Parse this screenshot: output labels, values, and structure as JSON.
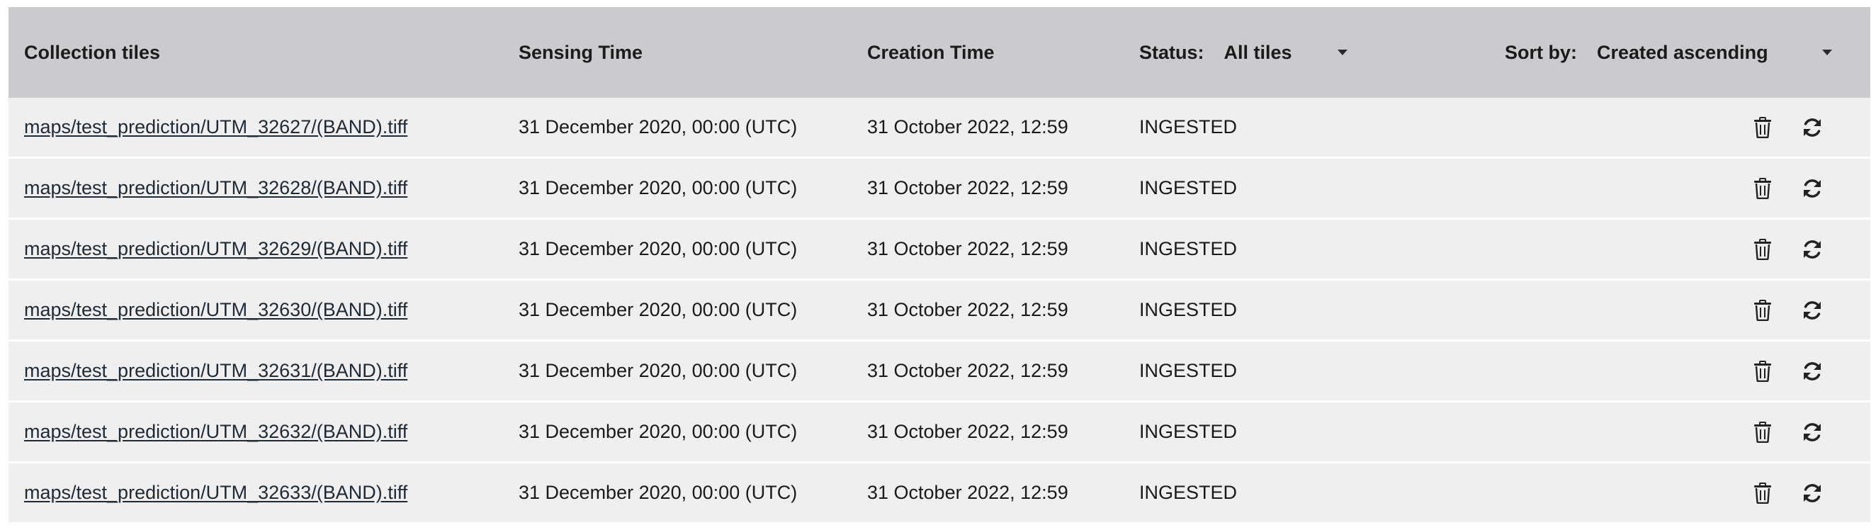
{
  "header": {
    "col_name": "Collection tiles",
    "col_sensing": "Sensing Time",
    "col_creation": "Creation Time",
    "status_label": "Status:",
    "status_value": "All tiles",
    "sort_label": "Sort by:",
    "sort_value": "Created ascending"
  },
  "icons": {
    "delete": "trash-icon",
    "reingest": "refresh-icon"
  },
  "rows": [
    {
      "name": "maps/test_prediction/UTM_32627/(BAND).tiff",
      "sensing": "31 December 2020, 00:00 (UTC)",
      "creation": "31 October  2022, 12:59",
      "status": "INGESTED"
    },
    {
      "name": "maps/test_prediction/UTM_32628/(BAND).tiff",
      "sensing": "31 December 2020, 00:00 (UTC)",
      "creation": "31 October 2022, 12:59",
      "status": "INGESTED"
    },
    {
      "name": "maps/test_prediction/UTM_32629/(BAND).tiff",
      "sensing": "31 December 2020, 00:00 (UTC)",
      "creation": "31 October 2022, 12:59",
      "status": "INGESTED"
    },
    {
      "name": "maps/test_prediction/UTM_32630/(BAND).tiff",
      "sensing": "31 December 2020, 00:00 (UTC)",
      "creation": "31 October 2022, 12:59",
      "status": "INGESTED"
    },
    {
      "name": "maps/test_prediction/UTM_32631/(BAND).tiff",
      "sensing": "31 December 2020, 00:00 (UTC)",
      "creation": "31 October 2022, 12:59",
      "status": "INGESTED"
    },
    {
      "name": "maps/test_prediction/UTM_32632/(BAND).tiff",
      "sensing": "31 December 2020, 00:00 (UTC)",
      "creation": "31 October 2022, 12:59",
      "status": "INGESTED"
    },
    {
      "name": "maps/test_prediction/UTM_32633/(BAND).tiff",
      "sensing": "31 December 2020, 00:00 (UTC)",
      "creation": "31 October 2022, 12:59",
      "status": "INGESTED"
    }
  ]
}
